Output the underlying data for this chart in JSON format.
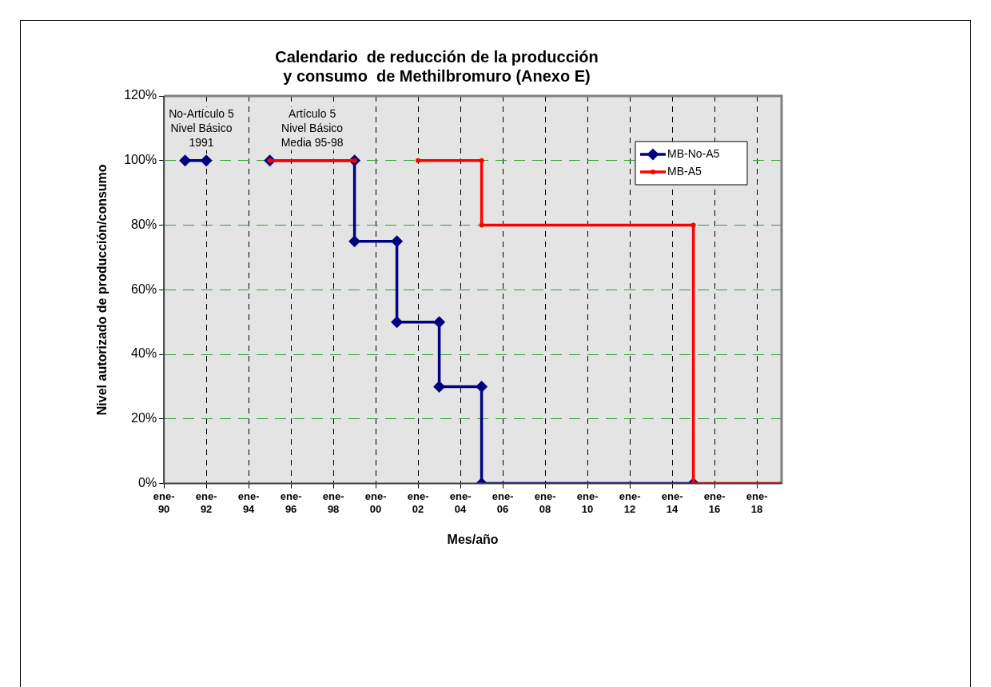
{
  "chart_data": {
    "type": "line",
    "title": "Calendario  de reducción de la producción\ny consumo  de Methilbromuro (Anexo E)",
    "xlabel": "Mes/año",
    "ylabel": "Nivel autorizado de producción/consumo",
    "xlim": [
      "1990-01",
      "2019-03"
    ],
    "xticks": [
      {
        "value": "1990-01",
        "label": "ene-90"
      },
      {
        "value": "1992-01",
        "label": "ene-92"
      },
      {
        "value": "1994-01",
        "label": "ene-94"
      },
      {
        "value": "1996-01",
        "label": "ene-96"
      },
      {
        "value": "1998-01",
        "label": "ene-98"
      },
      {
        "value": "2000-01",
        "label": "ene-00"
      },
      {
        "value": "2002-01",
        "label": "ene-02"
      },
      {
        "value": "2004-01",
        "label": "ene-04"
      },
      {
        "value": "2006-01",
        "label": "ene-06"
      },
      {
        "value": "2008-01",
        "label": "ene-08"
      },
      {
        "value": "2010-01",
        "label": "ene-10"
      },
      {
        "value": "2012-01",
        "label": "ene-12"
      },
      {
        "value": "2014-01",
        "label": "ene-14"
      },
      {
        "value": "2016-01",
        "label": "ene-16"
      },
      {
        "value": "2018-01",
        "label": "ene-18"
      }
    ],
    "ylim": [
      0,
      120
    ],
    "yticks": [
      {
        "value": 0,
        "label": "0%"
      },
      {
        "value": 20,
        "label": "20%"
      },
      {
        "value": 40,
        "label": "40%"
      },
      {
        "value": 60,
        "label": "60%"
      },
      {
        "value": 80,
        "label": "80%"
      },
      {
        "value": 100,
        "label": "100%"
      },
      {
        "value": 120,
        "label": "120%"
      }
    ],
    "grid": true,
    "legend": "top right",
    "line_style": "solid",
    "series": [
      {
        "name": "MB-No-A5",
        "color": "#000080",
        "marker": "diamond",
        "x": [
          "1991-01",
          "1992-01",
          "1993-07",
          "1995-01",
          "1999-01",
          "1999-01",
          "2001-01",
          "2001-01",
          "2003-01",
          "2003-01",
          "2005-01",
          "2005-01",
          "2015-01"
        ],
        "values": [
          100,
          100,
          null,
          100,
          100,
          75,
          75,
          50,
          50,
          30,
          30,
          0,
          0
        ]
      },
      {
        "name": "MB-A5",
        "color": "#ff0000",
        "marker": "circle",
        "x": [
          "1995-01",
          "1999-01",
          "2000-07",
          "2002-01",
          "2005-01",
          "2005-01",
          "2015-01",
          "2015-01",
          "2019-03"
        ],
        "values": [
          100,
          100,
          null,
          100,
          100,
          80,
          80,
          0,
          0
        ]
      }
    ],
    "annotations": [
      "No-Artículo 5\nNivel Básico\n1991",
      "Artículo 5\nNivel Básico\nMedia 95-98"
    ]
  }
}
